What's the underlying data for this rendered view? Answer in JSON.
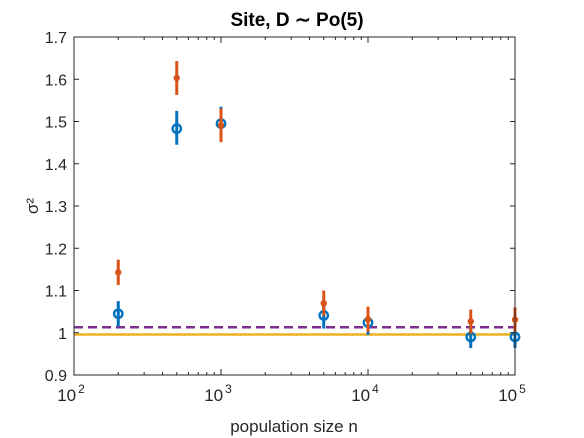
{
  "chart_data": {
    "type": "scatter",
    "title": "Site, D  ∼ Po(5)",
    "xlabel": "population size n",
    "ylabel": "σ²",
    "xscale": "log",
    "xlim": [
      100,
      100000
    ],
    "ylim": [
      0.9,
      1.7
    ],
    "x_ticks": [
      {
        "value": 100,
        "base": "10",
        "exp": "2"
      },
      {
        "value": 1000,
        "base": "10",
        "exp": "3"
      },
      {
        "value": 10000,
        "base": "10",
        "exp": "4"
      },
      {
        "value": 100000,
        "base": "10",
        "exp": "5"
      }
    ],
    "y_ticks": [
      {
        "value": 0.9,
        "label": "0.9"
      },
      {
        "value": 1.0,
        "label": "1"
      },
      {
        "value": 1.1,
        "label": "1.1"
      },
      {
        "value": 1.2,
        "label": "1.2"
      },
      {
        "value": 1.3,
        "label": "1.3"
      },
      {
        "value": 1.4,
        "label": "1.4"
      },
      {
        "value": 1.5,
        "label": "1.5"
      },
      {
        "value": 1.6,
        "label": "1.6"
      },
      {
        "value": 1.7,
        "label": "1.7"
      }
    ],
    "series": [
      {
        "style": "circle-errorbar",
        "color": "#0072BD",
        "points": [
          {
            "x": 200,
            "y": 1.045,
            "lo": 1.015,
            "hi": 1.075
          },
          {
            "x": 500,
            "y": 1.483,
            "lo": 1.445,
            "hi": 1.525
          },
          {
            "x": 1000,
            "y": 1.495,
            "lo": 1.455,
            "hi": 1.535
          },
          {
            "x": 5000,
            "y": 1.041,
            "lo": 1.01,
            "hi": 1.071
          },
          {
            "x": 10000,
            "y": 1.024,
            "lo": 0.995,
            "hi": 1.054
          },
          {
            "x": 50000,
            "y": 0.99,
            "lo": 0.964,
            "hi": 1.018
          },
          {
            "x": 100000,
            "y": 0.99,
            "lo": 0.964,
            "hi": 1.018
          }
        ]
      },
      {
        "style": "dot-errorbar",
        "color": "#D95319",
        "points": [
          {
            "x": 200,
            "y": 1.143,
            "lo": 1.113,
            "hi": 1.173
          },
          {
            "x": 500,
            "y": 1.603,
            "lo": 1.563,
            "hi": 1.643
          },
          {
            "x": 1000,
            "y": 1.491,
            "lo": 1.451,
            "hi": 1.531
          },
          {
            "x": 5000,
            "y": 1.07,
            "lo": 1.04,
            "hi": 1.1
          },
          {
            "x": 10000,
            "y": 1.032,
            "lo": 1.002,
            "hi": 1.062
          },
          {
            "x": 50000,
            "y": 1.027,
            "lo": 0.998,
            "hi": 1.055
          },
          {
            "x": 100000,
            "y": 1.031,
            "lo": 1.002,
            "hi": 1.06
          }
        ]
      }
    ],
    "reference_lines": [
      {
        "y": 0.996,
        "color": "#EDB120",
        "style": "solid"
      },
      {
        "y": 1.013,
        "color": "#7E2F8E",
        "style": "dashed"
      }
    ],
    "grid": false
  }
}
